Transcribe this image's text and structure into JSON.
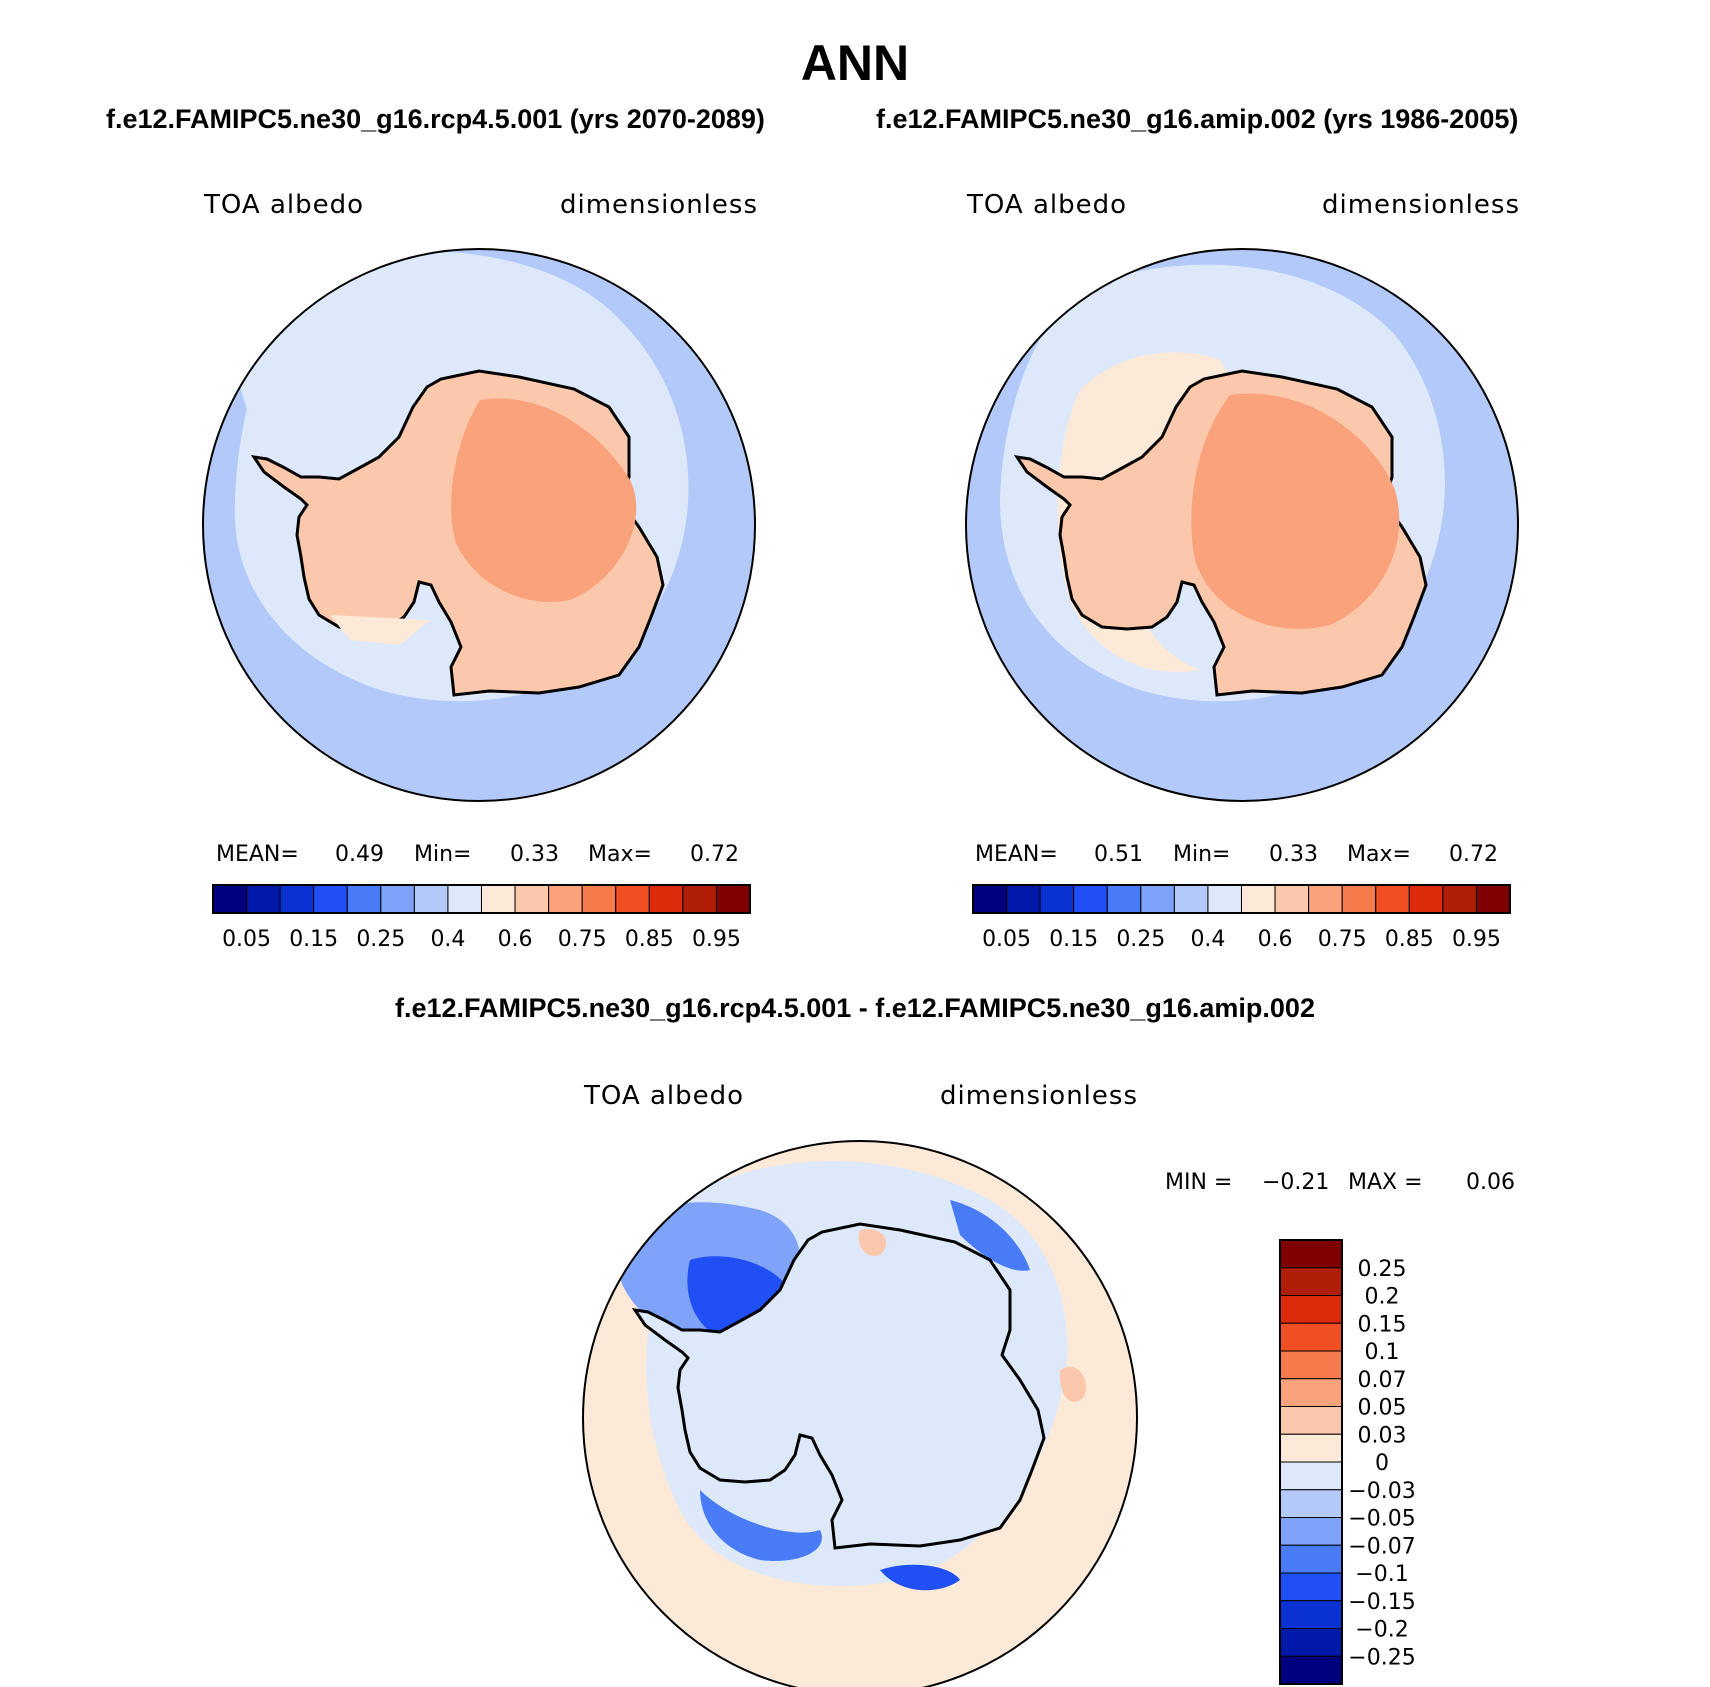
{
  "figure": {
    "title": "ANN",
    "case_a_title": "f.e12.FAMIPC5.ne30_g16.rcp4.5.001 (yrs 2070-2089)",
    "case_b_title": "f.e12.FAMIPC5.ne30_g16.amip.002 (yrs 1986-2005)",
    "diff_title": "f.e12.FAMIPC5.ne30_g16.rcp4.5.001 - f.e12.FAMIPC5.ne30_g16.amip.002"
  },
  "chart_data": [
    {
      "type": "heatmap",
      "projection": "south-polar stereographic",
      "variable": "TOA albedo",
      "units": "dimensionless",
      "stats": {
        "mean_label": "MEAN=",
        "mean": "0.49",
        "min_label": "Min=",
        "min": "0.33",
        "max_label": "Max=",
        "max": "0.72"
      },
      "colorbar": {
        "orientation": "horizontal",
        "tick_labels": [
          "0.05",
          "0.15",
          "0.25",
          "0.4",
          "0.6",
          "0.75",
          "0.85",
          "0.95"
        ],
        "colors": [
          "#00007f",
          "#0019a8",
          "#0a32d2",
          "#1f4ff5",
          "#4a7bf7",
          "#7fa3f8",
          "#b2c9fa",
          "#dde9fa",
          "#fde9d8",
          "#fcc8ac",
          "#f9a27c",
          "#f57a4c",
          "#f04e23",
          "#dc2a0a",
          "#b01e08",
          "#7f0000"
        ]
      }
    },
    {
      "type": "heatmap",
      "projection": "south-polar stereographic",
      "variable": "TOA albedo",
      "units": "dimensionless",
      "stats": {
        "mean_label": "MEAN=",
        "mean": "0.51",
        "min_label": "Min=",
        "min": "0.33",
        "max_label": "Max=",
        "max": "0.72"
      },
      "colorbar": {
        "orientation": "horizontal",
        "tick_labels": [
          "0.05",
          "0.15",
          "0.25",
          "0.4",
          "0.6",
          "0.75",
          "0.85",
          "0.95"
        ],
        "colors": [
          "#00007f",
          "#0019a8",
          "#0a32d2",
          "#1f4ff5",
          "#4a7bf7",
          "#7fa3f8",
          "#b2c9fa",
          "#dde9fa",
          "#fde9d8",
          "#fcc8ac",
          "#f9a27c",
          "#f57a4c",
          "#f04e23",
          "#dc2a0a",
          "#b01e08",
          "#7f0000"
        ]
      }
    },
    {
      "type": "heatmap",
      "projection": "south-polar stereographic",
      "variable": "TOA albedo",
      "units": "dimensionless",
      "stats": {
        "min_label": "MIN =",
        "min": "−0.21",
        "max_label": "MAX =",
        "max": "0.06"
      },
      "colorbar": {
        "orientation": "vertical",
        "tick_labels": [
          "0.25",
          "0.2",
          "0.15",
          "0.1",
          "0.07",
          "0.05",
          "0.03",
          "0",
          "−0.03",
          "−0.05",
          "−0.07",
          "−0.1",
          "−0.15",
          "−0.2",
          "−0.25"
        ],
        "colors": [
          "#7f0000",
          "#b01e08",
          "#dc2a0a",
          "#f04e23",
          "#f57a4c",
          "#f9a27c",
          "#fcc8ac",
          "#fde9d8",
          "#dde9fa",
          "#b2c9fa",
          "#7fa3f8",
          "#4a7bf7",
          "#1f4ff5",
          "#0a32d2",
          "#0019a8",
          "#00007f"
        ]
      }
    }
  ]
}
